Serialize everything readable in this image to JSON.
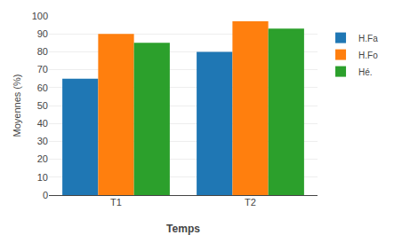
{
  "chart_data": {
    "type": "bar",
    "categories": [
      "T1",
      "T2"
    ],
    "series": [
      {
        "name": "H.Fa",
        "values": [
          65,
          80
        ]
      },
      {
        "name": "H.Fo",
        "values": [
          90,
          97
        ]
      },
      {
        "name": "Hé.",
        "values": [
          85,
          93
        ]
      }
    ],
    "xlabel": "Temps",
    "ylabel": "Moyennes (%)",
    "ylim": [
      0,
      100
    ],
    "yticks": [
      0,
      10,
      20,
      30,
      40,
      50,
      60,
      70,
      80,
      90,
      100
    ],
    "grid": true,
    "legend": "right"
  }
}
